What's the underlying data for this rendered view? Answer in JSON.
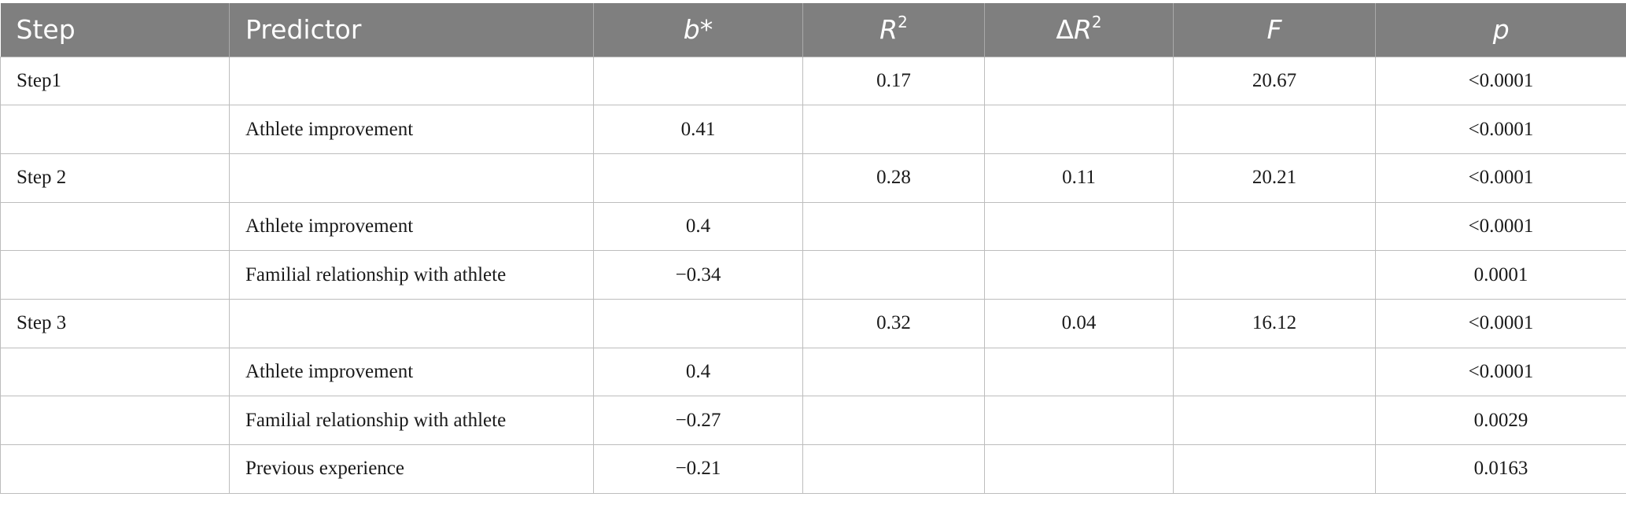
{
  "table": {
    "headers": {
      "step": "Step",
      "predictor": "Predictor",
      "b": "b",
      "b_suffix": "*",
      "r2": "R",
      "r2_sup": "2",
      "dr2_delta": "Δ",
      "dr2": "R",
      "dr2_sup": "2",
      "f": "F",
      "p": "p"
    },
    "rows": [
      {
        "step": "Step1",
        "predictor": "",
        "b": "",
        "r2": "0.17",
        "dr2": "",
        "f": "20.67",
        "p": "<0.0001"
      },
      {
        "step": "",
        "predictor": "Athlete improvement",
        "b": "0.41",
        "r2": "",
        "dr2": "",
        "f": "",
        "p": "<0.0001"
      },
      {
        "step": "Step 2",
        "predictor": "",
        "b": "",
        "r2": "0.28",
        "dr2": "0.11",
        "f": "20.21",
        "p": "<0.0001"
      },
      {
        "step": "",
        "predictor": "Athlete improvement",
        "b": "0.4",
        "r2": "",
        "dr2": "",
        "f": "",
        "p": "<0.0001"
      },
      {
        "step": "",
        "predictor": "Familial relationship with athlete",
        "b": "−0.34",
        "r2": "",
        "dr2": "",
        "f": "",
        "p": "0.0001"
      },
      {
        "step": "Step 3",
        "predictor": "",
        "b": "",
        "r2": "0.32",
        "dr2": "0.04",
        "f": "16.12",
        "p": "<0.0001"
      },
      {
        "step": "",
        "predictor": "Athlete improvement",
        "b": "0.4",
        "r2": "",
        "dr2": "",
        "f": "",
        "p": "<0.0001"
      },
      {
        "step": "",
        "predictor": "Familial relationship with athlete",
        "b": "−0.27",
        "r2": "",
        "dr2": "",
        "f": "",
        "p": "0.0029"
      },
      {
        "step": "",
        "predictor": "Previous experience",
        "b": "−0.21",
        "r2": "",
        "dr2": "",
        "f": "",
        "p": "0.0163"
      }
    ]
  }
}
